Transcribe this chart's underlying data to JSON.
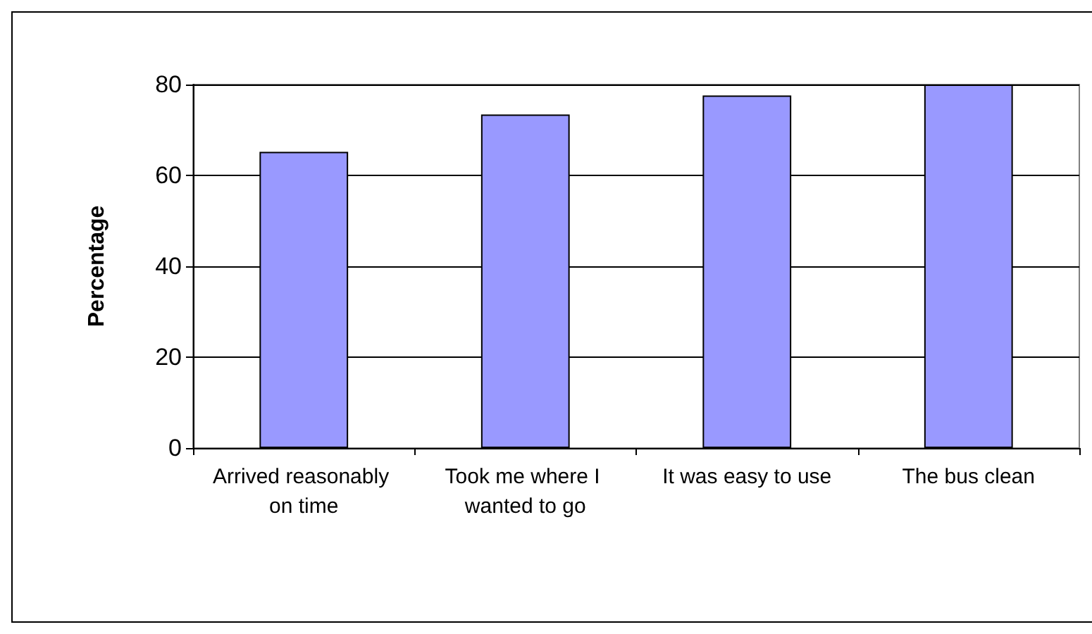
{
  "chart_data": {
    "type": "bar",
    "ylabel": "Percentage",
    "categories": [
      "Arrived reasonably on time",
      "Took me where I wanted to go",
      "It was easy to use",
      "The bus clean"
    ],
    "values": [
      65.2,
      73.4,
      77.6,
      80
    ],
    "color": "#9999ff",
    "ylim": [
      0,
      80
    ],
    "yticks": [
      0,
      20,
      40,
      60,
      80
    ],
    "grid": "y"
  }
}
